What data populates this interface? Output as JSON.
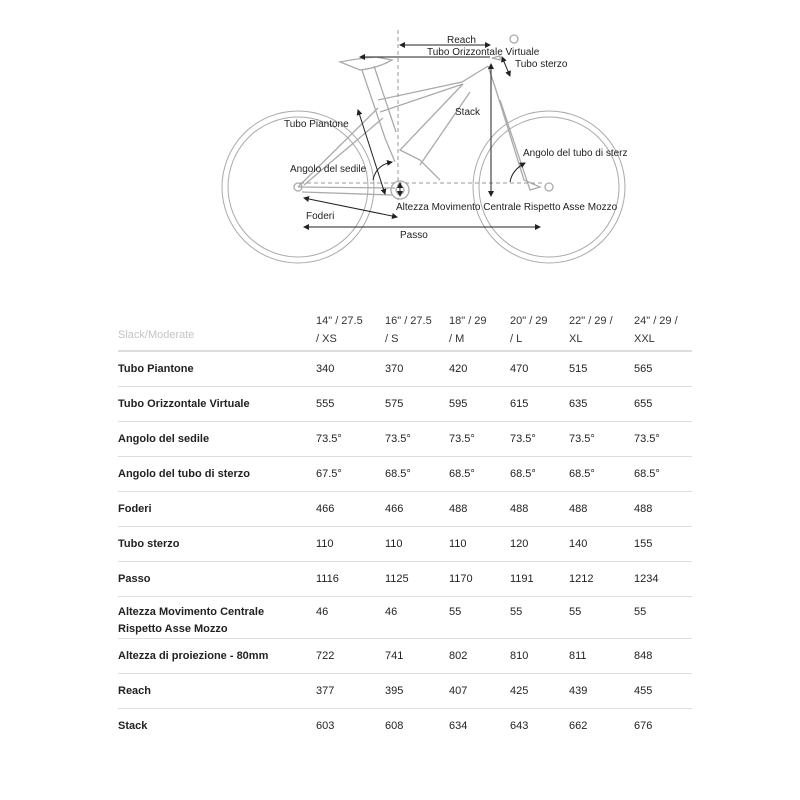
{
  "diagram": {
    "labels": {
      "reach": "Reach",
      "top_tube": "Tubo Orizzontale Virtuale",
      "head_tube": "Tubo sterzo",
      "stack": "Stack",
      "seat_tube": "Tubo Piantone",
      "head_angle": "Angolo del tubo di sterz",
      "seat_angle": "Angolo del sedile",
      "bb_drop": "Altezza Movimento Centrale Rispetto Asse Mozzo",
      "chainstay": "Foderi",
      "wheelbase": "Passo"
    }
  },
  "table": {
    "corner": "Slack/Moderate",
    "columns": [
      {
        "line1": "14\" / 27.5",
        "line2": "/ XS"
      },
      {
        "line1": "16\" / 27.5",
        "line2": "/ S"
      },
      {
        "line1": "18\" / 29",
        "line2": "/ M"
      },
      {
        "line1": "20\" / 29",
        "line2": "/ L"
      },
      {
        "line1": "22\" / 29 /",
        "line2": "XL"
      },
      {
        "line1": "24\" / 29 /",
        "line2": "XXL"
      }
    ],
    "rows": [
      {
        "label": "Tubo Piantone",
        "values": [
          "340",
          "370",
          "420",
          "470",
          "515",
          "565"
        ]
      },
      {
        "label": "Tubo Orizzontale Virtuale",
        "values": [
          "555",
          "575",
          "595",
          "615",
          "635",
          "655"
        ]
      },
      {
        "label": "Angolo del sedile",
        "values": [
          "73.5°",
          "73.5°",
          "73.5°",
          "73.5°",
          "73.5°",
          "73.5°"
        ]
      },
      {
        "label": "Angolo del tubo di sterzo",
        "values": [
          "67.5°",
          "68.5°",
          "68.5°",
          "68.5°",
          "68.5°",
          "68.5°"
        ]
      },
      {
        "label": "Foderi",
        "values": [
          "466",
          "466",
          "488",
          "488",
          "488",
          "488"
        ]
      },
      {
        "label": "Tubo sterzo",
        "values": [
          "110",
          "110",
          "110",
          "120",
          "140",
          "155"
        ]
      },
      {
        "label": "Passo",
        "values": [
          "1116",
          "1125",
          "1170",
          "1191",
          "1212",
          "1234"
        ]
      },
      {
        "label": "Altezza Movimento Centrale",
        "label2": "Rispetto Asse Mozzo",
        "values": [
          "46",
          "46",
          "55",
          "55",
          "55",
          "55"
        ]
      },
      {
        "label": "Altezza di proiezione - 80mm",
        "values": [
          "722",
          "741",
          "802",
          "810",
          "811",
          "848"
        ]
      },
      {
        "label": "Reach",
        "values": [
          "377",
          "395",
          "407",
          "425",
          "439",
          "455"
        ]
      },
      {
        "label": "Stack",
        "values": [
          "603",
          "608",
          "634",
          "643",
          "662",
          "676"
        ]
      }
    ]
  }
}
